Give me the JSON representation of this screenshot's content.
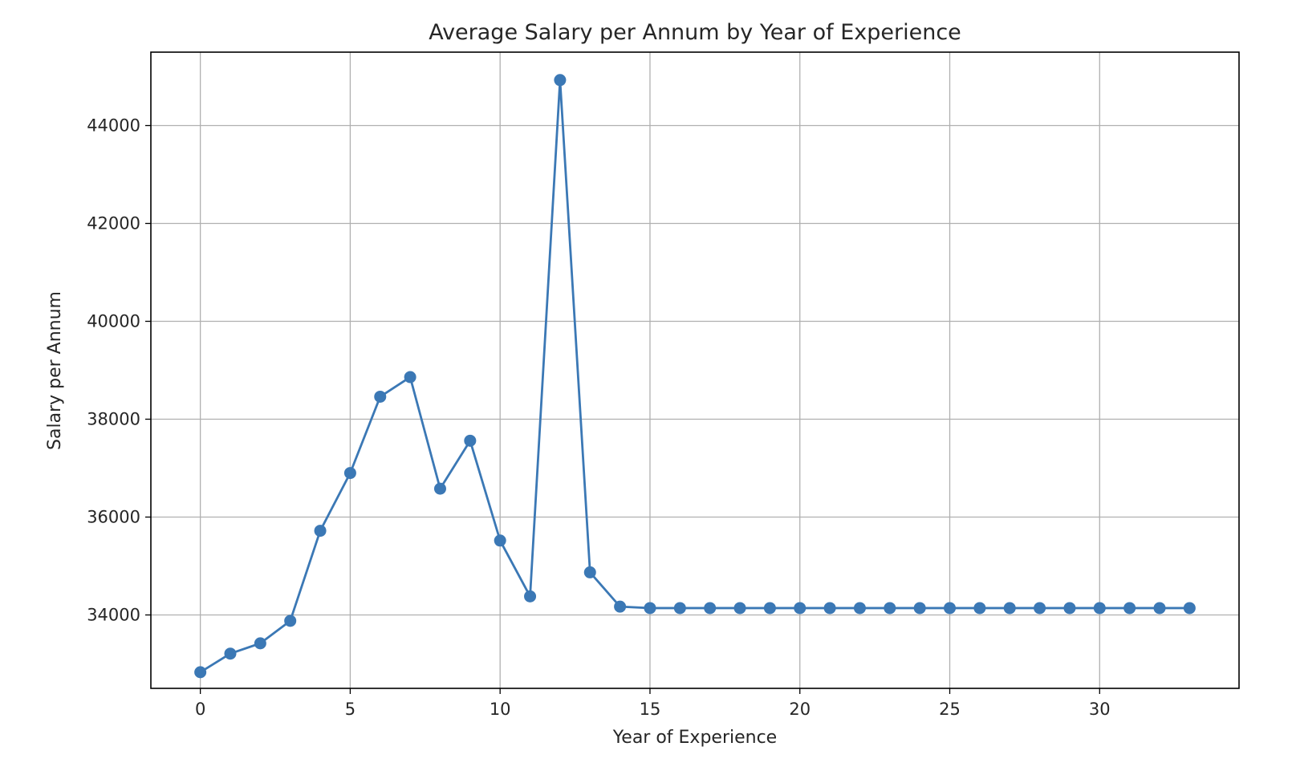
{
  "chart_data": {
    "type": "line",
    "title": "Average Salary per Annum by Year of Experience",
    "xlabel": "Year of Experience",
    "ylabel": "Salary per Annum",
    "xlim": [
      -1.65,
      34.65
    ],
    "ylim": [
      32500,
      45500
    ],
    "xticks": [
      0,
      5,
      10,
      15,
      20,
      25,
      30
    ],
    "yticks": [
      34000,
      36000,
      38000,
      40000,
      42000,
      44000
    ],
    "grid": true,
    "marker": "circle",
    "series": [
      {
        "color": "#3b78b5",
        "x": [
          0,
          1,
          2,
          3,
          4,
          5,
          6,
          7,
          8,
          9,
          10,
          11,
          12,
          13,
          14,
          15,
          16,
          17,
          18,
          19,
          20,
          21,
          22,
          23,
          24,
          25,
          26,
          27,
          28,
          29,
          30,
          31,
          32,
          33
        ],
        "values": [
          32830,
          33210,
          33420,
          33880,
          35720,
          36900,
          38460,
          38860,
          36580,
          37560,
          35520,
          34380,
          44930,
          34870,
          34170,
          34140,
          34140,
          34140,
          34140,
          34140,
          34140,
          34140,
          34140,
          34140,
          34140,
          34140,
          34140,
          34140,
          34140,
          34140,
          34140,
          34140,
          34140,
          34140
        ]
      }
    ]
  }
}
